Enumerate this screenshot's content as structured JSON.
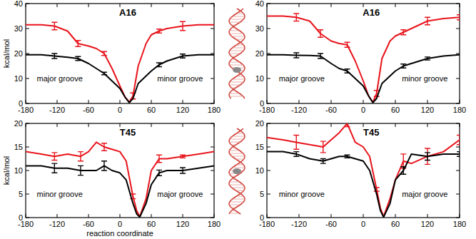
{
  "chart_data": [
    {
      "type": "line",
      "title": "A16",
      "y_label": "kcal/mol",
      "annotations": [
        "major groove",
        "minor groove"
      ],
      "x": [
        -180,
        -150,
        -125,
        -100,
        -80,
        -60,
        -45,
        -30,
        -15,
        0,
        10,
        18,
        25,
        35,
        50,
        60,
        75,
        90,
        120,
        150,
        180
      ],
      "xlim": [
        -180,
        180
      ],
      "xticks": [
        -180,
        -120,
        -60,
        0,
        60,
        120,
        180
      ],
      "ylim": [
        0,
        40
      ],
      "yticks": [
        0,
        10,
        20,
        30,
        40
      ],
      "series": [
        {
          "color": "#e8141c",
          "values": [
            31.5,
            31.5,
            31,
            29,
            24,
            23,
            22,
            20,
            14,
            7,
            2.5,
            0.5,
            3,
            15,
            24,
            27.5,
            29,
            30,
            31,
            31.5,
            31.5
          ],
          "errors": [
            null,
            null,
            1.5,
            null,
            1.2,
            null,
            null,
            0.8,
            null,
            null,
            null,
            null,
            1.2,
            null,
            null,
            null,
            0.8,
            null,
            1.8,
            null,
            null
          ]
        },
        {
          "color": "#000000",
          "values": [
            19.5,
            19.5,
            19,
            18.5,
            18,
            16,
            14,
            12,
            9,
            6,
            2.5,
            0.3,
            2,
            8,
            11,
            13,
            15.5,
            17,
            19,
            19.5,
            19.5
          ],
          "errors": [
            null,
            null,
            1,
            null,
            0.8,
            null,
            null,
            0.5,
            null,
            null,
            null,
            null,
            null,
            null,
            null,
            null,
            0.8,
            null,
            0.8,
            null,
            null
          ]
        }
      ]
    },
    {
      "type": "line",
      "title": "A16",
      "annotations": [
        "major groove",
        "minor groove"
      ],
      "x": [
        -180,
        -150,
        -125,
        -100,
        -80,
        -60,
        -45,
        -30,
        -15,
        0,
        10,
        18,
        25,
        35,
        50,
        60,
        75,
        90,
        120,
        150,
        180
      ],
      "xlim": [
        -180,
        180
      ],
      "xticks": [
        -180,
        -120,
        -60,
        0,
        60,
        120,
        180
      ],
      "ylim": [
        0,
        40
      ],
      "yticks": [
        0,
        10,
        20,
        30,
        40
      ],
      "series": [
        {
          "color": "#e8141c",
          "values": [
            35,
            35,
            34.5,
            33,
            28,
            25,
            24,
            23.5,
            17,
            9,
            3,
            0.5,
            4,
            18,
            25,
            27,
            28.5,
            30,
            33,
            34,
            34.5
          ],
          "errors": [
            null,
            null,
            1.5,
            null,
            1.5,
            null,
            null,
            1,
            null,
            null,
            null,
            null,
            1.2,
            null,
            null,
            null,
            1,
            null,
            1.5,
            null,
            1
          ]
        },
        {
          "color": "#000000",
          "values": [
            19.5,
            19.5,
            19.3,
            19.2,
            19,
            16,
            14,
            13,
            10,
            7,
            3,
            0.3,
            2,
            8,
            11,
            13,
            15,
            16,
            18,
            19,
            19.5
          ],
          "errors": [
            null,
            null,
            1,
            null,
            1,
            null,
            null,
            0.8,
            null,
            null,
            null,
            null,
            null,
            null,
            null,
            null,
            0.8,
            null,
            0.6,
            null,
            null
          ]
        }
      ]
    },
    {
      "type": "line",
      "title": "T45",
      "y_label": "kcal/mol",
      "x_label": "reaction coordinate",
      "annotations": [
        "minor groove",
        "major groove"
      ],
      "x": [
        -180,
        -150,
        -125,
        -100,
        -75,
        -60,
        -45,
        -30,
        -15,
        0,
        12,
        25,
        32,
        38,
        50,
        60,
        75,
        90,
        120,
        150,
        180
      ],
      "xlim": [
        -180,
        180
      ],
      "xticks": [
        -180,
        -120,
        -60,
        0,
        60,
        120,
        180
      ],
      "ylim": [
        0,
        20
      ],
      "yticks": [
        0,
        5,
        10,
        15,
        20
      ],
      "series": [
        {
          "color": "#e8141c",
          "values": [
            14,
            13.5,
            13,
            13.5,
            13,
            14,
            16,
            15,
            14.5,
            14,
            12,
            4.5,
            1.5,
            0.2,
            4,
            10,
            12.5,
            12.5,
            13,
            13.5,
            14
          ],
          "errors": [
            null,
            null,
            0.8,
            null,
            1,
            null,
            null,
            0.8,
            null,
            null,
            null,
            0.5,
            null,
            null,
            null,
            null,
            0.8,
            null,
            0.3,
            null,
            null
          ]
        },
        {
          "color": "#000000",
          "values": [
            11,
            11,
            10.5,
            10.5,
            10,
            10,
            10,
            11,
            10,
            9.5,
            8,
            3,
            0.8,
            0.1,
            3,
            7,
            9.5,
            10,
            10,
            10.5,
            11
          ],
          "errors": [
            null,
            null,
            1,
            null,
            1,
            null,
            null,
            1,
            null,
            null,
            null,
            null,
            null,
            null,
            null,
            null,
            0.6,
            null,
            0.6,
            null,
            null
          ]
        }
      ]
    },
    {
      "type": "line",
      "title": "T45",
      "annotations": [
        "minor groove",
        "major groove"
      ],
      "x": [
        -180,
        -150,
        -125,
        -100,
        -75,
        -60,
        -45,
        -30,
        -15,
        0,
        12,
        25,
        32,
        38,
        50,
        60,
        75,
        90,
        120,
        150,
        180
      ],
      "xlim": [
        -180,
        180
      ],
      "xticks": [
        -180,
        -120,
        -60,
        0,
        60,
        120,
        180
      ],
      "ylim": [
        0,
        20
      ],
      "yticks": [
        0,
        5,
        10,
        15,
        20
      ],
      "series": [
        {
          "color": "#e8141c",
          "values": [
            17,
            16.5,
            16,
            15.5,
            15,
            16.5,
            18,
            20,
            16,
            15,
            13,
            6,
            2,
            0.2,
            4,
            8,
            12,
            11.5,
            13,
            14,
            16.5
          ],
          "errors": [
            null,
            null,
            1.5,
            null,
            1.2,
            null,
            null,
            0.7,
            null,
            null,
            null,
            0.4,
            null,
            null,
            null,
            null,
            1.5,
            null,
            1.7,
            null,
            1
          ]
        },
        {
          "color": "#000000",
          "values": [
            14,
            14,
            13.5,
            12.5,
            12,
            12.5,
            13,
            13,
            12.5,
            12,
            10,
            5,
            1.5,
            0.1,
            3,
            8,
            10,
            13.5,
            13,
            13.5,
            13.5
          ],
          "errors": [
            null,
            null,
            0.5,
            null,
            0.5,
            null,
            null,
            0.3,
            null,
            null,
            null,
            null,
            null,
            null,
            null,
            null,
            0.8,
            null,
            0.8,
            null,
            0.5
          ]
        }
      ]
    }
  ]
}
